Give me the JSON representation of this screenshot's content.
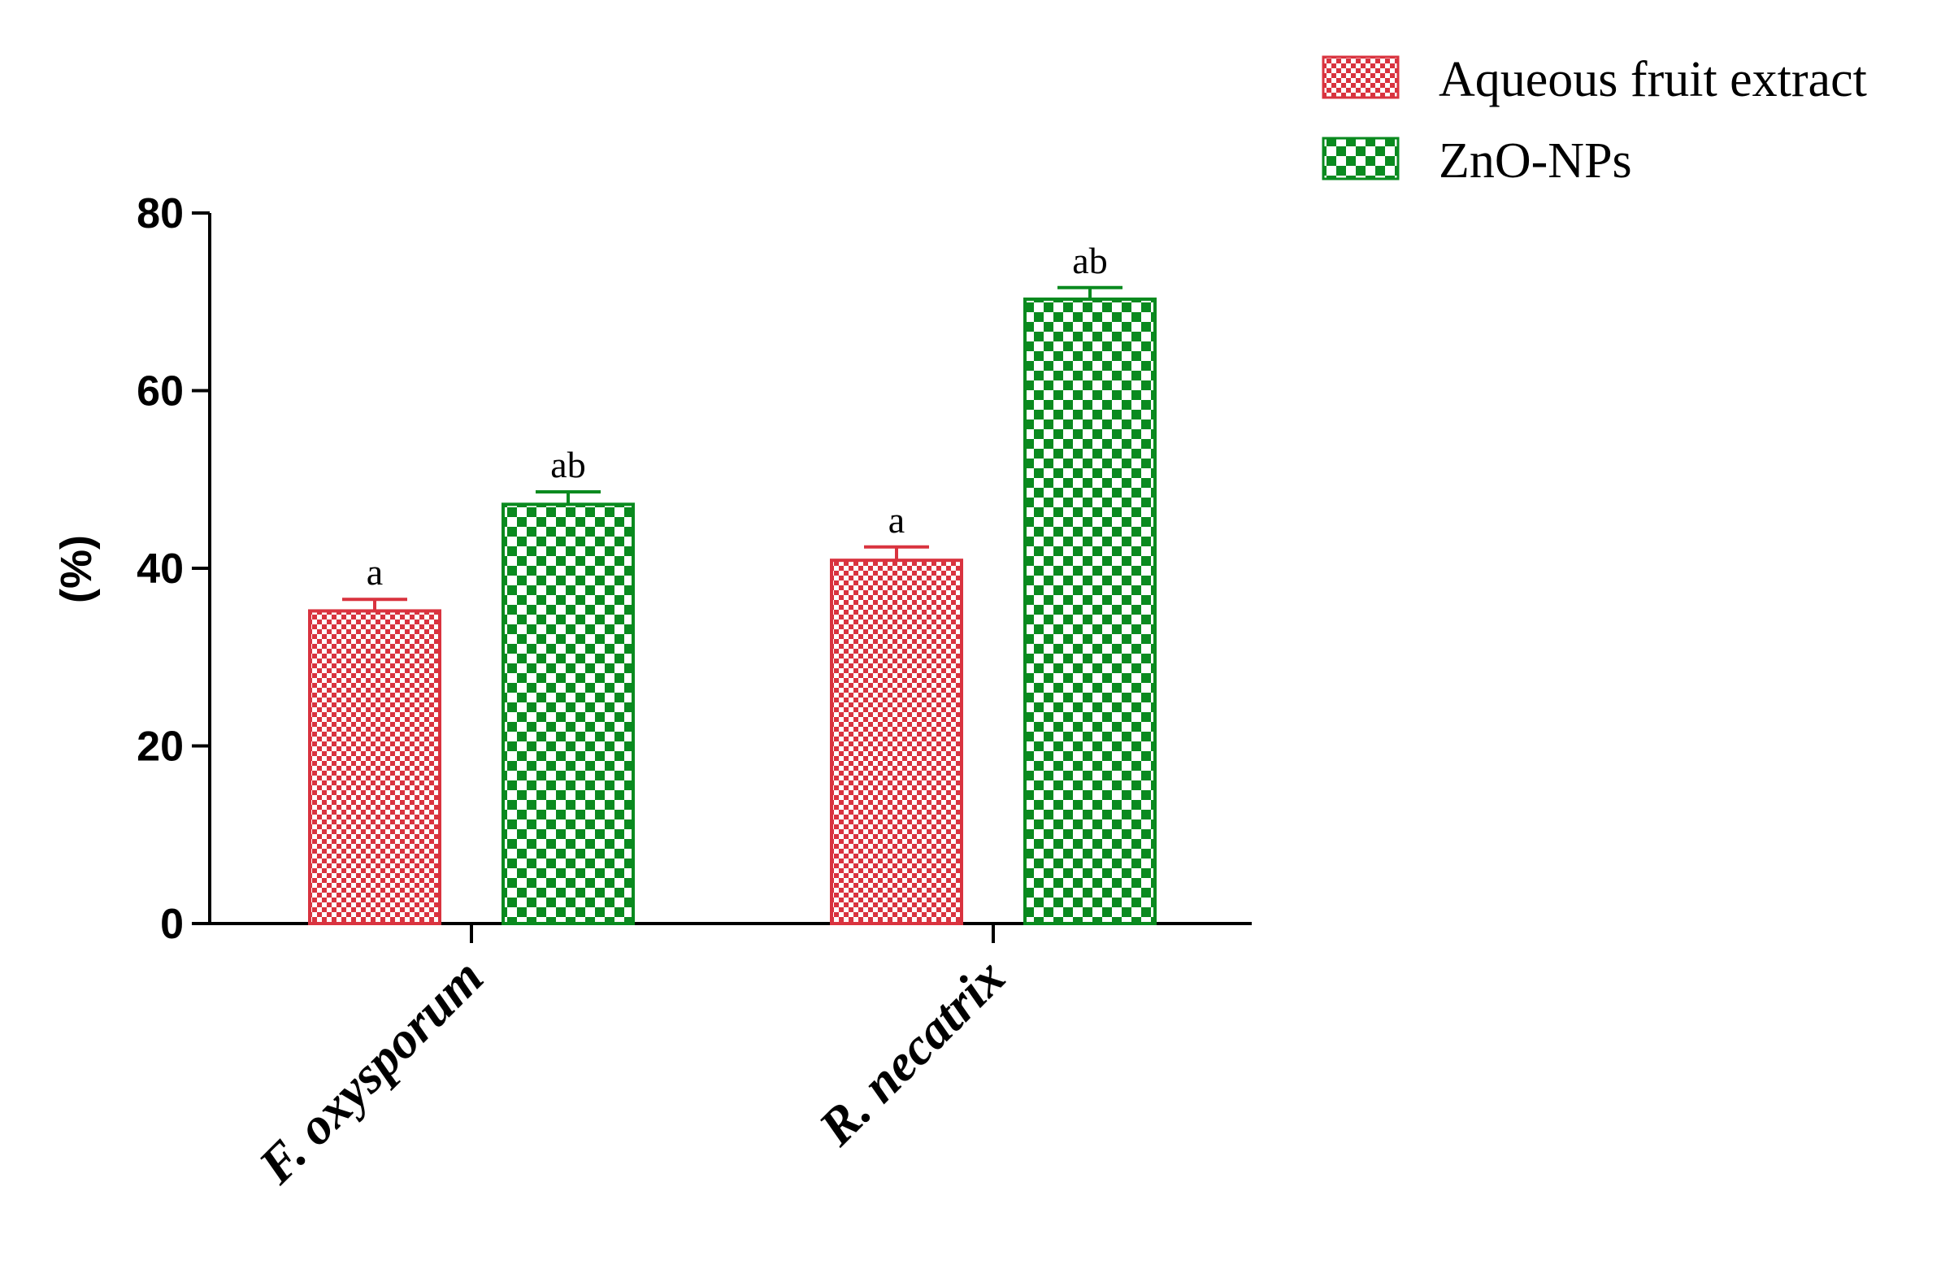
{
  "chart_data": {
    "type": "bar",
    "title": "",
    "xlabel": "",
    "ylabel": "(%)",
    "ylim": [
      0,
      80
    ],
    "yticks": [
      0,
      20,
      40,
      60,
      80
    ],
    "categories": [
      "F. oxysporum",
      "R. necatrix"
    ],
    "series": [
      {
        "name": "Aqueous fruit extract",
        "color": "#d9333f",
        "pattern": "fine-check",
        "values": [
          35.2,
          40.9
        ],
        "errors": [
          1.3,
          1.5
        ],
        "letters": [
          "a",
          "a"
        ]
      },
      {
        "name": "ZnO-NPs",
        "color": "#0a8a1f",
        "pattern": "coarse-check",
        "values": [
          47.2,
          70.3
        ],
        "errors": [
          1.4,
          1.3
        ],
        "letters": [
          "ab",
          "ab"
        ]
      }
    ],
    "legend": "top-right",
    "grid": false
  }
}
